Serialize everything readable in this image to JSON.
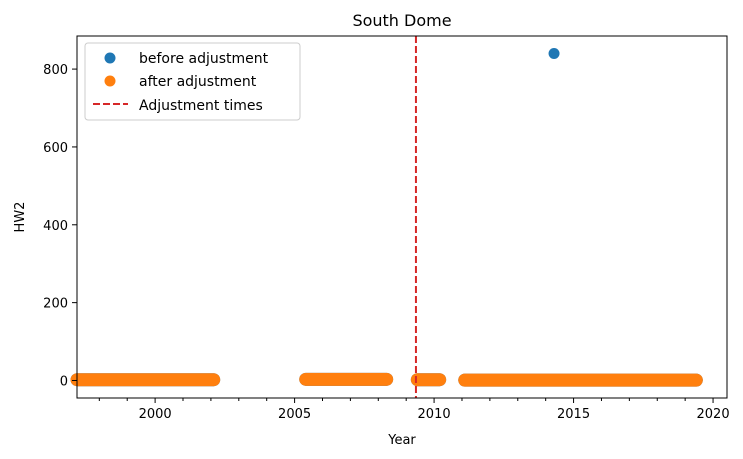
{
  "chart_data": {
    "type": "scatter",
    "title": "South Dome",
    "xlabel": "Year",
    "ylabel": "HW2",
    "xlim": [
      1997.2,
      2020.5
    ],
    "ylim": [
      -45,
      885
    ],
    "xticks": [
      2000,
      2005,
      2010,
      2015,
      2020
    ],
    "yticks": [
      0,
      200,
      400,
      600,
      800
    ],
    "grid": false,
    "legend_position": "top-left",
    "series": [
      {
        "name": "before adjustment",
        "color": "#1f77b4",
        "points": [
          [
            2014.3,
            840
          ]
        ],
        "segments": [
          {
            "x_start": 1997.2,
            "x_end": 2002.1,
            "y": 2
          },
          {
            "x_start": 2005.4,
            "x_end": 2008.3,
            "y": 3
          },
          {
            "x_start": 2009.4,
            "x_end": 2010.2,
            "y": 2
          },
          {
            "x_start": 2011.1,
            "x_end": 2019.4,
            "y": 1
          }
        ]
      },
      {
        "name": "after adjustment",
        "color": "#ff7f0e",
        "points": [],
        "segments": [
          {
            "x_start": 1997.2,
            "x_end": 2002.1,
            "y": 2
          },
          {
            "x_start": 2005.4,
            "x_end": 2008.3,
            "y": 3
          },
          {
            "x_start": 2009.4,
            "x_end": 2010.2,
            "y": 2
          },
          {
            "x_start": 2011.1,
            "x_end": 2019.4,
            "y": 1
          }
        ]
      }
    ],
    "vlines": [
      {
        "name": "Adjustment times",
        "x": 2009.35,
        "color": "#d62728",
        "style": "dashed"
      }
    ]
  }
}
